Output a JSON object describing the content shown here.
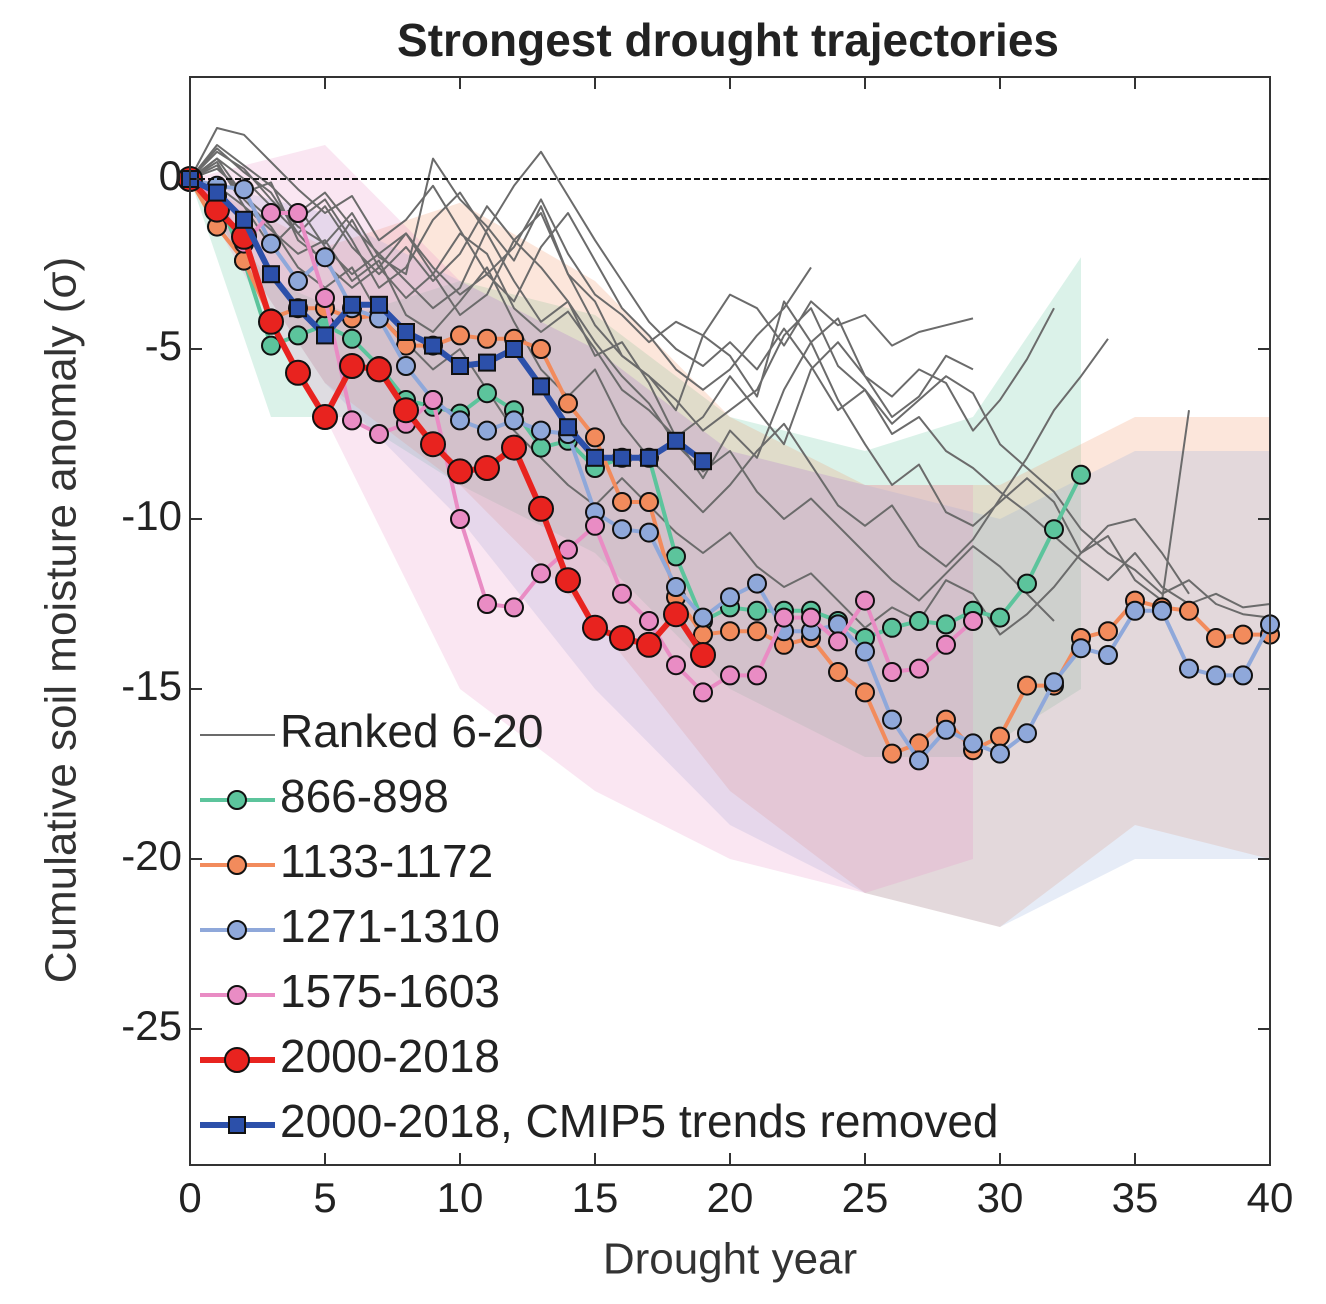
{
  "chart_data": {
    "type": "line",
    "title": "Strongest drought trajectories",
    "x_label": "Drought year",
    "y_label": "Cumulative soil moisture anomaly (σ)",
    "x": [
      0,
      1,
      2,
      3,
      4,
      5,
      6,
      7,
      8,
      9,
      10,
      11,
      12,
      13,
      14,
      15,
      16,
      17,
      18,
      19,
      20,
      21,
      22,
      23,
      24,
      25,
      26,
      27,
      28,
      29,
      30,
      31,
      32,
      33,
      34,
      35,
      36,
      37,
      38,
      39,
      40
    ],
    "xlim": [
      0,
      40
    ],
    "ylim": [
      -29,
      3
    ],
    "xticks": [
      0,
      5,
      10,
      15,
      20,
      25,
      30,
      35,
      40
    ],
    "yticks": [
      0,
      -5,
      -10,
      -15,
      -20,
      -25
    ],
    "zero_line": true,
    "legend": "lower left",
    "background_lines": {
      "name": "Ranked 6-20",
      "color": "#6b6b6b",
      "lines": [
        [
          0,
          1.5,
          1.3,
          0.5,
          -0.3,
          -1.0,
          -0.5,
          -1.8,
          -1.2,
          -0.2,
          -1.5,
          -2.8,
          -2.0,
          -0.6,
          -2.2,
          -3.4,
          -4.0,
          -4.8,
          -4.2,
          -4.6,
          -3.4,
          -3.8,
          -4.9,
          -3.6,
          -4.3,
          -4.0,
          -4.9,
          -4.5,
          -4.3,
          -4.1,
          null,
          null,
          null,
          null,
          null,
          null,
          null,
          null,
          null,
          null,
          null
        ],
        [
          0,
          0.8,
          0.3,
          -0.6,
          -1.4,
          -1.9,
          -1.0,
          -2.3,
          -2.8,
          0.6,
          -0.6,
          -1.4,
          -2.4,
          -0.8,
          -2.8,
          -4.3,
          -5.2,
          -5.8,
          -6.8,
          -4.6,
          -5.2,
          -6.4,
          -3.6,
          -4.8,
          -4.1,
          -5.8,
          -6.4,
          -5.6,
          -6.0,
          -7.4,
          -6.5,
          -5.3,
          -3.8,
          null,
          null,
          null,
          null,
          null,
          null,
          null,
          null
        ],
        [
          0,
          0.6,
          -0.5,
          -1.2,
          -0.8,
          -2.0,
          -2.8,
          -2.2,
          -3.0,
          -3.8,
          -3.2,
          -1.5,
          -0.2,
          0.8,
          -0.5,
          -1.8,
          -3.0,
          -4.2,
          -5.0,
          -5.5,
          -4.8,
          -5.6,
          -4.4,
          -5.5,
          -6.8,
          -6.2,
          -7.5,
          -7.0,
          -8.0,
          -8.5,
          -9.2,
          -9.8,
          -10.5,
          -11.2,
          -11.8,
          -11.0,
          -12.0,
          -12.5,
          -12.2,
          -12.6,
          -12.5
        ],
        [
          0,
          0.9,
          0.2,
          -0.4,
          -1.6,
          -2.5,
          -3.2,
          -2.6,
          -1.6,
          -2.8,
          -4.0,
          -3.4,
          -1.8,
          -1.0,
          -2.8,
          -3.6,
          -5.2,
          -5.8,
          -6.5,
          -7.4,
          -6.8,
          -6.2,
          -4.6,
          -3.8,
          -5.5,
          -6.2,
          -7.2,
          -6.5,
          -5.8,
          -6.3,
          -7.8,
          -8.5,
          -9.2,
          -10.3,
          -11.0,
          -11.5,
          -12.2,
          -11.8,
          -12.5,
          -12.8,
          -12.9
        ],
        [
          0,
          0.3,
          -0.4,
          -0.1,
          -1.8,
          -2.4,
          -1.2,
          -2.6,
          -3.5,
          -2.8,
          -1.6,
          -2.2,
          -3.8,
          -4.5,
          -3.9,
          -5.0,
          -6.2,
          -6.8,
          -7.6,
          -8.8,
          -7.4,
          -8.2,
          -6.2,
          -4.8,
          -6.5,
          -7.8,
          -9.0,
          -8.4,
          -9.8,
          -10.2,
          -9.5,
          -8.8,
          -9.5,
          -11.0,
          -10.5,
          -11.8,
          -12.4,
          -6.8,
          null,
          null,
          null
        ],
        [
          0,
          0.5,
          -0.8,
          -1.5,
          -2.2,
          -1.8,
          -3.0,
          -2.4,
          -4.0,
          -4.5,
          -3.6,
          -2.6,
          -4.2,
          -5.6,
          -6.4,
          -5.6,
          -7.2,
          -8.2,
          -9.0,
          -9.8,
          -9.0,
          -8.0,
          -7.2,
          -8.4,
          -9.6,
          -10.2,
          -9.6,
          -10.8,
          -11.4,
          -10.6,
          -9.4,
          -8.2,
          -6.8,
          -5.8,
          -4.7,
          null,
          null,
          null,
          null,
          null,
          null
        ],
        [
          0,
          -0.2,
          -0.8,
          -2.0,
          -1.2,
          -0.6,
          -1.8,
          -3.2,
          -2.6,
          -1.2,
          -0.4,
          -1.6,
          -3.0,
          -4.2,
          -3.6,
          -5.2,
          -4.8,
          -6.0,
          -7.6,
          -7.0,
          -5.8,
          -6.8,
          -7.8,
          -5.6,
          -4.8,
          -5.8,
          -7.0,
          -6.4,
          -5.2,
          -5.6,
          null,
          null,
          null,
          null,
          null,
          null,
          null,
          null,
          null,
          null,
          null
        ],
        [
          0,
          0.6,
          0.0,
          -0.8,
          -1.6,
          -0.8,
          -2.0,
          -2.8,
          -2.0,
          -3.0,
          -2.2,
          -0.8,
          -1.8,
          -2.6,
          -3.6,
          -4.8,
          -5.8,
          -6.6,
          -7.8,
          -8.6,
          -8.0,
          -9.2,
          -10.0,
          -9.4,
          -10.2,
          -11.0,
          -11.8,
          -12.4,
          -11.6,
          -10.8,
          -11.4,
          -12.2,
          -13.0,
          null,
          null,
          null,
          null,
          null,
          null,
          null,
          null
        ],
        [
          0,
          1.0,
          0.4,
          -0.2,
          -1.0,
          -0.4,
          -1.4,
          -2.2,
          -1.6,
          -2.6,
          -3.4,
          -2.8,
          -3.6,
          -2.0,
          -1.0,
          -2.4,
          -3.8,
          -4.6,
          -5.6,
          -6.2,
          -5.6,
          -4.6,
          -3.8,
          -2.6,
          null,
          null,
          null,
          null,
          null,
          null,
          null,
          null,
          null,
          null,
          null,
          null,
          null,
          null,
          null,
          null,
          null
        ],
        [
          0,
          0.4,
          -0.6,
          -1.4,
          -2.6,
          -3.2,
          -2.6,
          -4.0,
          -4.8,
          -5.6,
          -5.0,
          -6.2,
          -7.4,
          -8.2,
          -9.0,
          -9.6,
          -8.8,
          -9.6,
          -10.4,
          -11.0,
          -10.4,
          -11.4,
          -12.0,
          -11.6,
          -12.4,
          -13.2,
          -12.6,
          -13.0,
          -11.8,
          -12.2,
          -13.4,
          -12.8,
          -12.0,
          -11.0,
          -10.2,
          -10.0,
          -11.0,
          -12.2,
          null,
          null,
          null
        ]
      ]
    },
    "series": [
      {
        "name": "866-898",
        "color": "#5cc49c",
        "marker": "circle",
        "values": [
          0,
          -0.5,
          -2.4,
          -4.9,
          -4.6,
          -4.3,
          -4.7,
          -5.5,
          -6.5,
          -6.7,
          -6.9,
          -6.3,
          -6.8,
          -7.9,
          -7.7,
          -8.5,
          -8.2,
          -8.2,
          -11.1,
          -13.0,
          -12.6,
          -12.7,
          -12.7,
          -12.7,
          -13.0,
          -13.5,
          -13.2,
          -13.0,
          -13.1,
          -12.7,
          -12.9,
          -11.9,
          -10.3,
          -8.7,
          null,
          null,
          null,
          null,
          null,
          null,
          null
        ],
        "band": {
          "x": [
            0,
            3,
            6,
            10,
            15,
            20,
            25,
            29,
            33
          ],
          "upper": [
            0,
            -3,
            -4,
            -3,
            -4,
            -7,
            -8,
            -7,
            -2.3
          ],
          "lower": [
            0,
            -7,
            -7,
            -9,
            -11,
            -15,
            -17,
            -17,
            -15
          ]
        }
      },
      {
        "name": "1133-1172",
        "color": "#f28b5c",
        "marker": "circle",
        "values": [
          0,
          -1.4,
          -2.4,
          -4.1,
          -3.8,
          -3.8,
          -4.1,
          -4.0,
          -4.9,
          -4.9,
          -4.6,
          -4.7,
          -4.7,
          -5.0,
          -6.6,
          -7.6,
          -9.5,
          -9.5,
          -12.3,
          -13.4,
          -13.3,
          -13.3,
          -13.7,
          -13.5,
          -14.5,
          -15.1,
          -16.9,
          -16.6,
          -15.9,
          -16.8,
          -16.4,
          -14.9,
          -14.9,
          -13.5,
          -13.3,
          -12.4,
          -12.6,
          -12.7,
          -13.5,
          -13.4,
          -13.4
        ],
        "band": {
          "x": [
            0,
            5,
            10,
            15,
            20,
            25,
            30,
            35,
            40
          ],
          "upper": [
            0,
            -2,
            -0.7,
            -3,
            -7,
            -9,
            -9,
            -7,
            -7
          ],
          "lower": [
            0,
            -6,
            -9,
            -13,
            -18,
            -21,
            -22,
            -19,
            -20
          ]
        }
      },
      {
        "name": "1271-1310",
        "color": "#8fa8da",
        "marker": "circle",
        "values": [
          0,
          -0.2,
          -0.3,
          -1.9,
          -3.0,
          -2.3,
          -3.8,
          -4.1,
          -5.5,
          -6.5,
          -7.1,
          -7.4,
          -7.1,
          -7.4,
          -7.5,
          -9.8,
          -10.3,
          -10.4,
          -12.0,
          -12.9,
          -12.3,
          -11.9,
          -13.3,
          -13.3,
          -13.1,
          -13.9,
          -15.9,
          -17.1,
          -16.2,
          -16.6,
          -16.9,
          -16.3,
          -14.8,
          -13.8,
          -14.0,
          -12.7,
          -12.7,
          -14.4,
          -14.6,
          -14.6,
          -13.1
        ],
        "band": {
          "x": [
            0,
            5,
            10,
            15,
            20,
            25,
            30,
            35,
            40
          ],
          "upper": [
            0,
            -1,
            -3,
            -5,
            -8,
            -9,
            -10,
            -8,
            -8
          ],
          "lower": [
            0,
            -6,
            -10,
            -15,
            -19,
            -21,
            -22,
            -20,
            -20
          ]
        }
      },
      {
        "name": "1575-1603",
        "color": "#e98cc4",
        "marker": "circle",
        "values": [
          0,
          -0.6,
          -1.9,
          -1.0,
          -1.0,
          -3.5,
          -7.1,
          -7.5,
          -7.2,
          -6.5,
          -10.0,
          -12.5,
          -12.6,
          -11.6,
          -10.9,
          -10.2,
          -12.2,
          -13.0,
          -14.3,
          -15.1,
          -14.6,
          -14.6,
          -12.9,
          -12.9,
          -13.6,
          -12.4,
          -14.5,
          -14.4,
          -13.7,
          -13.0,
          null,
          null,
          null,
          null,
          null,
          null,
          null,
          null,
          null,
          null,
          null
        ],
        "band": {
          "x": [
            0,
            5,
            10,
            15,
            20,
            25,
            29
          ],
          "upper": [
            0,
            1,
            -3,
            -5,
            -8,
            -9,
            -9
          ],
          "lower": [
            0,
            -7,
            -15,
            -18,
            -20,
            -21,
            -20
          ]
        }
      },
      {
        "name": "2000-2018",
        "color": "#e8231f",
        "marker": "big-circle",
        "values": [
          0,
          -0.9,
          -1.7,
          -4.2,
          -5.7,
          -7.0,
          -5.5,
          -5.6,
          -6.8,
          -7.8,
          -8.6,
          -8.5,
          -7.9,
          -9.7,
          -11.8,
          -13.2,
          -13.5,
          -13.7,
          -12.8,
          -14.0,
          null,
          null,
          null,
          null,
          null,
          null,
          null,
          null,
          null,
          null,
          null,
          null,
          null,
          null,
          null,
          null,
          null,
          null,
          null,
          null,
          null
        ]
      },
      {
        "name": "2000-2018, CMIP5 trends removed",
        "color": "#2c50aa",
        "marker": "square",
        "values": [
          0,
          -0.4,
          -1.2,
          -2.8,
          -3.8,
          -4.6,
          -3.7,
          -3.7,
          -4.5,
          -4.9,
          -5.5,
          -5.4,
          -5.0,
          -6.1,
          -7.3,
          -8.2,
          -8.2,
          -8.2,
          -7.7,
          -8.3,
          null,
          null,
          null,
          null,
          null,
          null,
          null,
          null,
          null,
          null,
          null,
          null,
          null,
          null,
          null,
          null,
          null,
          null,
          null,
          null,
          null
        ]
      }
    ]
  }
}
